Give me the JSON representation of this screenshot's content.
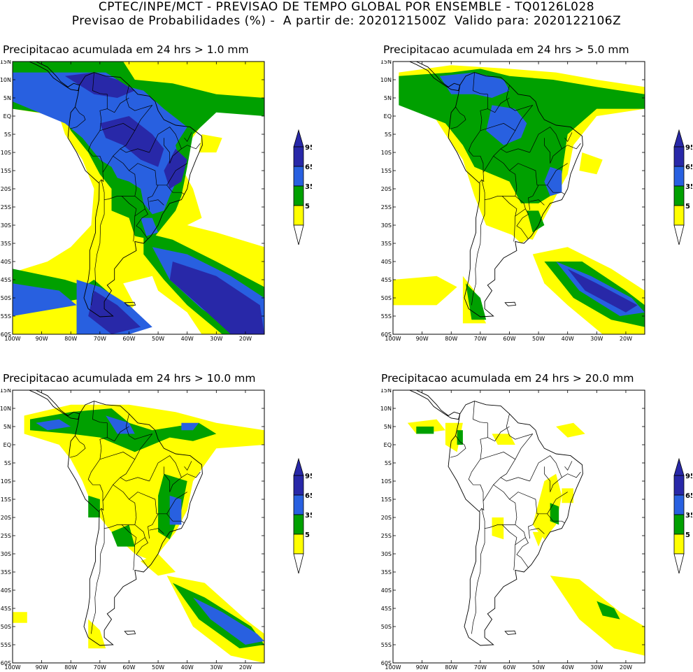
{
  "header": {
    "line1": "CPTEC/INPE/MCT - PREVISAO DE TEMPO GLOBAL POR ENSEMBLE - TQ0126L028",
    "line2": "Previsao de Probabilidades (%) -  A partir de: 2020121500Z  Valido para: 2020122106Z"
  },
  "colors": {
    "c5": "#ffff00",
    "c35": "#00a000",
    "c65": "#2860e0",
    "c95": "#2828a8",
    "outline": "#000000"
  },
  "axes": {
    "lat_labels": [
      "15N",
      "10N",
      "5N",
      "EQ",
      "5S",
      "10S",
      "15S",
      "20S",
      "25S",
      "30S",
      "35S",
      "40S",
      "45S",
      "50S",
      "55S",
      "60S"
    ],
    "lon_labels": [
      "100W",
      "90W",
      "80W",
      "70W",
      "60W",
      "50W",
      "40W",
      "30W",
      "20W"
    ]
  },
  "colorbar": {
    "labels": [
      "95",
      "65",
      "35",
      "5"
    ]
  },
  "panels": [
    {
      "title": "Precipitacao acumulada em 24 hrs > 1.0 mm",
      "threshold_mm": 1.0,
      "max_level": 95
    },
    {
      "title": "Precipitacao acumulada em 24 hrs > 5.0 mm",
      "threshold_mm": 5.0,
      "max_level": 95
    },
    {
      "title": "Precipitacao acumulada em 24 hrs > 10.0 mm",
      "threshold_mm": 10.0,
      "max_level": 65
    },
    {
      "title": "Precipitacao acumulada em 24 hrs > 20.0 mm",
      "threshold_mm": 20.0,
      "max_level": 35
    }
  ]
}
